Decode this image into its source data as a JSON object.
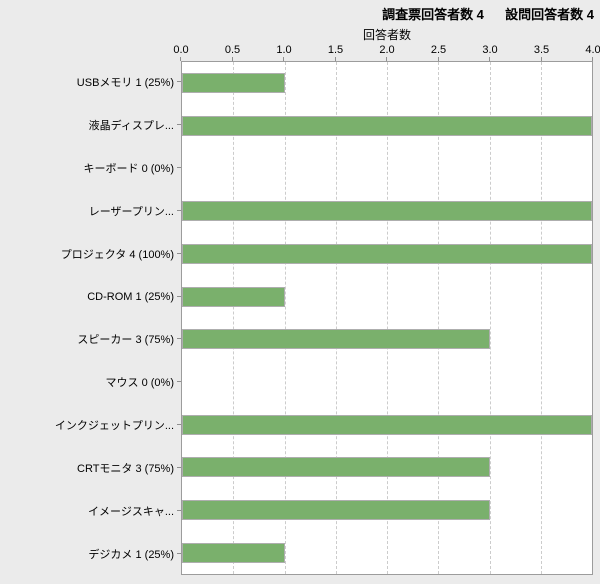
{
  "header": {
    "survey_label": "調査票回答者数 4",
    "question_label": "設問回答者数 4"
  },
  "chart_data": {
    "type": "bar",
    "orientation": "horizontal",
    "title": "",
    "xlabel": "回答者数",
    "ylabel": "",
    "xlim": [
      0,
      4
    ],
    "xticks": [
      "0.0",
      "0.5",
      "1.0",
      "1.5",
      "2.0",
      "2.5",
      "3.0",
      "3.5",
      "4.0"
    ],
    "grid": "vertical-dashed",
    "legend_position": "none",
    "categories": [
      "USBメモリ 1 (25%)",
      "液晶ディスプレ...",
      "キーボード 0 (0%)",
      "レーザープリン...",
      "プロジェクタ 4 (100%)",
      "CD-ROM 1 (25%)",
      "スピーカー 3 (75%)",
      "マウス 0 (0%)",
      "インクジェットプリン...",
      "CRTモニタ 3 (75%)",
      "イメージスキャ...",
      "デジカメ 1 (25%)"
    ],
    "values": [
      1,
      4,
      0,
      4,
      4,
      1,
      3,
      0,
      4,
      3,
      3,
      1
    ],
    "colors": {
      "bar": "#7ab06c",
      "bar_border": "#aeaeae",
      "plot_background": "#ffffff",
      "page_background": "#ebebeb",
      "gridline": "#cccccc",
      "axis_border": "#9c9c9c",
      "tick": "#8f8f8f",
      "text": "#000000"
    }
  }
}
